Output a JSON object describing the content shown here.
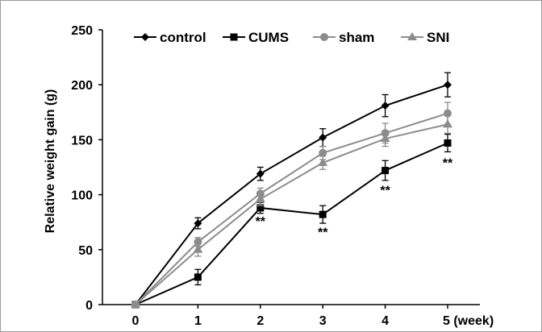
{
  "chart_data": {
    "type": "line",
    "x": [
      0,
      1,
      2,
      3,
      4,
      5
    ],
    "x_tick_labels": [
      "0",
      "1",
      "2",
      "3",
      "4",
      "5 (week)"
    ],
    "ylabel": "Relative weight gain (g)",
    "ylim": [
      0,
      250
    ],
    "y_ticks": [
      0,
      50,
      100,
      150,
      200,
      250
    ],
    "legend": "top",
    "grid": false,
    "series": [
      {
        "name": "control",
        "marker": "diamond",
        "color": "#000000",
        "values": [
          0,
          74,
          119,
          152,
          181,
          200
        ],
        "errors": [
          0,
          5,
          6,
          8,
          10,
          11
        ]
      },
      {
        "name": "CUMS",
        "marker": "square",
        "color": "#000000",
        "values": [
          0,
          25,
          88,
          82,
          122,
          147
        ],
        "errors": [
          0,
          7,
          5,
          8,
          9,
          8
        ]
      },
      {
        "name": "sham",
        "marker": "circle",
        "color": "#8c8c8c",
        "values": [
          0,
          57,
          101,
          138,
          156,
          174
        ],
        "errors": [
          0,
          4,
          5,
          6,
          9,
          10
        ]
      },
      {
        "name": "SNI",
        "marker": "triangle",
        "color": "#8c8c8c",
        "values": [
          0,
          50,
          96,
          129,
          151,
          164
        ],
        "errors": [
          0,
          6,
          6,
          6,
          7,
          8
        ]
      }
    ],
    "annotations": [
      {
        "x": 2,
        "y": 72,
        "text": "**"
      },
      {
        "x": 3,
        "y": 62,
        "text": "**"
      },
      {
        "x": 4,
        "y": 100,
        "text": "**"
      },
      {
        "x": 5,
        "y": 125,
        "text": "**"
      }
    ]
  }
}
